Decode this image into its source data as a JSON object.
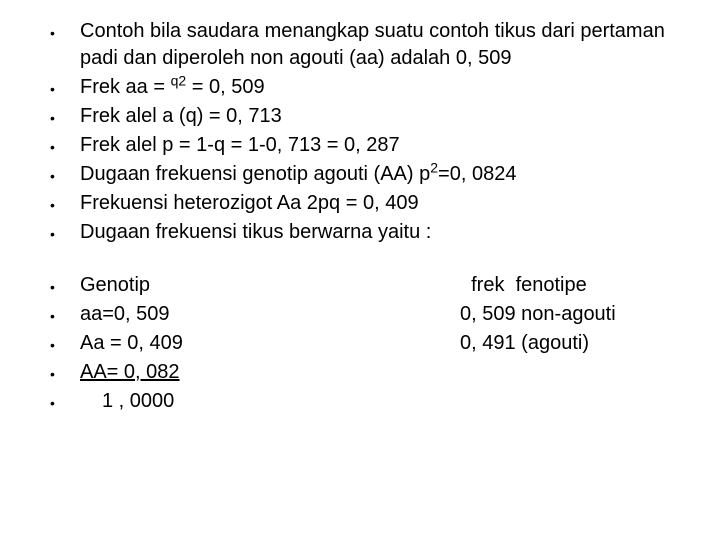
{
  "colors": {
    "text": "#000000",
    "background": "#ffffff"
  },
  "typography": {
    "font_family": "Arial",
    "base_fontsize_pt": 20,
    "line_height": 1.35
  },
  "block1": [
    {
      "pre": "Contoh bila saudara menangkap  suatu contoh tikus dari pertaman padi  dan diperoleh non agouti (aa) adalah 0, 509"
    },
    {
      "pre": "Frek aa = ",
      "sup": "q2",
      "mid": " = 0, 509"
    },
    {
      "pre": "Frek alel a (q) = 0, 713"
    },
    {
      "pre": "Frek alel p = 1-q = 1-0, 713 = 0, 287"
    },
    {
      "pre": "Dugaan frekuensi genotip agouti (AA) p",
      "sup": "2",
      "mid": "=0, 0824"
    },
    {
      "pre": "Frekuensi heterozigot Aa 2pq = 0, 409"
    },
    {
      "pre": "Dugaan frekuensi tikus berwarna yaitu :"
    }
  ],
  "table": {
    "header_left": "Genotip",
    "header_right": "  frek  fenotipe",
    "rows": [
      {
        "left": "aa=0, 509",
        "right": "0, 509 non-agouti"
      },
      {
        "left": "Aa = 0, 409",
        "right": "0, 491 (agouti)"
      },
      {
        "left": "AA= 0, 082",
        "right": "",
        "underline": true
      },
      {
        "left": "1 , 0000",
        "right": "",
        "indent": true
      }
    ]
  }
}
